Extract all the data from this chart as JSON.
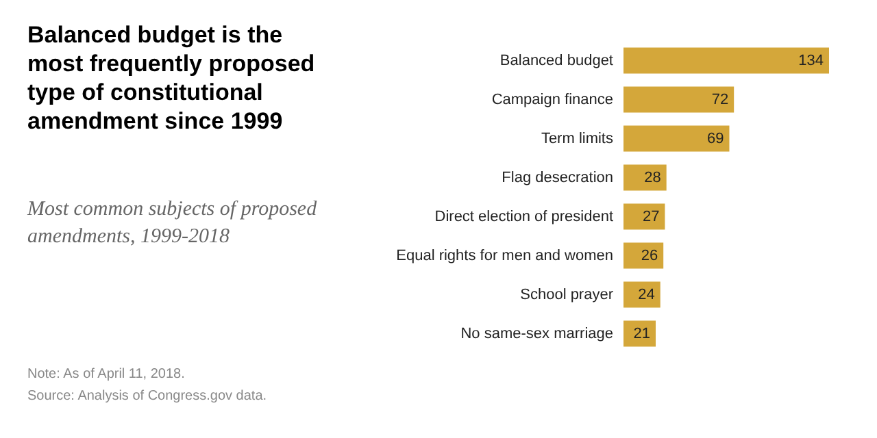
{
  "chart_data": {
    "type": "bar",
    "orientation": "horizontal",
    "title": "Balanced budget is the most frequently proposed type of constitutional amendment since 1999",
    "subtitle": "Most common subjects of proposed amendments, 1999-2018",
    "categories": [
      "Balanced budget",
      "Campaign finance",
      "Term limits",
      "Flag desecration",
      "Direct election of president",
      "Equal rights for men and women",
      "School prayer",
      "No same-sex marriage"
    ],
    "values": [
      134,
      72,
      69,
      28,
      27,
      26,
      24,
      21
    ],
    "color": "#d4a73a",
    "data_labels": true,
    "grid": false,
    "tick_labels": "y",
    "annotations": [
      "Note: As of April 11, 2018.",
      "Source: Analysis of Congress.gov data."
    ]
  }
}
